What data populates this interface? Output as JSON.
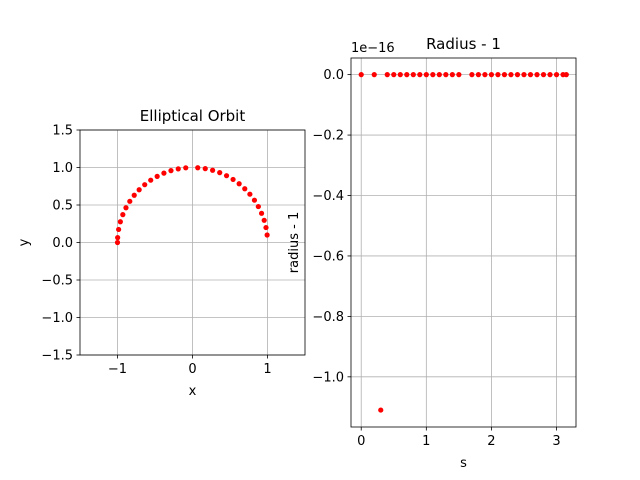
{
  "colors": {
    "marker": "#ff0000",
    "grid": "#b0b0b0",
    "axes": "#000000"
  },
  "chart_data": [
    {
      "type": "scatter",
      "title": "Elliptical Orbit",
      "xlabel": "x",
      "ylabel": "y",
      "xlim": [
        -1.5,
        1.5
      ],
      "ylim": [
        -1.5,
        1.5
      ],
      "xticks": [
        -1,
        0,
        1
      ],
      "xticklabels": [
        "−1",
        "0",
        "1"
      ],
      "yticks": [
        -1.5,
        -1.0,
        -0.5,
        0.0,
        0.5,
        1.0,
        1.5
      ],
      "yticklabels": [
        "−1.5",
        "−1.0",
        "−0.5",
        "0.0",
        "0.5",
        "1.0",
        "1.5"
      ],
      "grid": true,
      "marker": "point",
      "x": [
        0.995,
        0.98,
        0.956,
        0.921,
        0.878,
        0.826,
        0.765,
        0.697,
        0.622,
        0.541,
        0.454,
        0.363,
        0.268,
        0.17,
        0.07,
        -0.09,
        -0.19,
        -0.287,
        -0.381,
        -0.471,
        -0.557,
        -0.637,
        -0.711,
        -0.777,
        -0.836,
        -0.887,
        -0.929,
        -0.962,
        -0.985,
        -0.998,
        -1.0
      ],
      "y": [
        0.1,
        0.199,
        0.296,
        0.389,
        0.479,
        0.564,
        0.644,
        0.717,
        0.783,
        0.841,
        0.891,
        0.932,
        0.963,
        0.985,
        0.997,
        0.996,
        0.982,
        0.958,
        0.925,
        0.882,
        0.831,
        0.771,
        0.703,
        0.63,
        0.549,
        0.463,
        0.372,
        0.277,
        0.174,
        0.065,
        0.0
      ]
    },
    {
      "type": "scatter",
      "title": "Radius - 1",
      "xlabel": "s",
      "ylabel": "radius - 1",
      "offset_text": "1e−16",
      "xlim": [
        -0.157,
        3.299
      ],
      "ylim": [
        -1.166,
        0.055
      ],
      "xticks": [
        0,
        1,
        2,
        3
      ],
      "xticklabels": [
        "0",
        "1",
        "2",
        "3"
      ],
      "yticks": [
        -1.0,
        -0.8,
        -0.6,
        -0.4,
        -0.2,
        0.0
      ],
      "yticklabels": [
        "−1.0",
        "−0.8",
        "−0.6",
        "−0.4",
        "−0.2",
        "0.0"
      ],
      "grid": true,
      "marker": "point",
      "x": [
        0.0,
        0.2,
        0.4,
        0.5,
        0.6,
        0.7,
        0.8,
        0.9,
        1.0,
        1.1,
        1.2,
        1.3,
        1.4,
        1.5,
        1.7,
        1.8,
        1.9,
        2.0,
        2.1,
        2.2,
        2.3,
        2.4,
        2.5,
        2.6,
        2.7,
        2.8,
        2.9,
        3.0,
        3.1,
        3.15,
        0.3
      ],
      "y": [
        0,
        0,
        0,
        0,
        0,
        0,
        0,
        0,
        0,
        0,
        0,
        0,
        0,
        0,
        0,
        0,
        0,
        0,
        0,
        0,
        0,
        0,
        0,
        0,
        0,
        0,
        0,
        0,
        0,
        0,
        -1.11
      ]
    }
  ]
}
